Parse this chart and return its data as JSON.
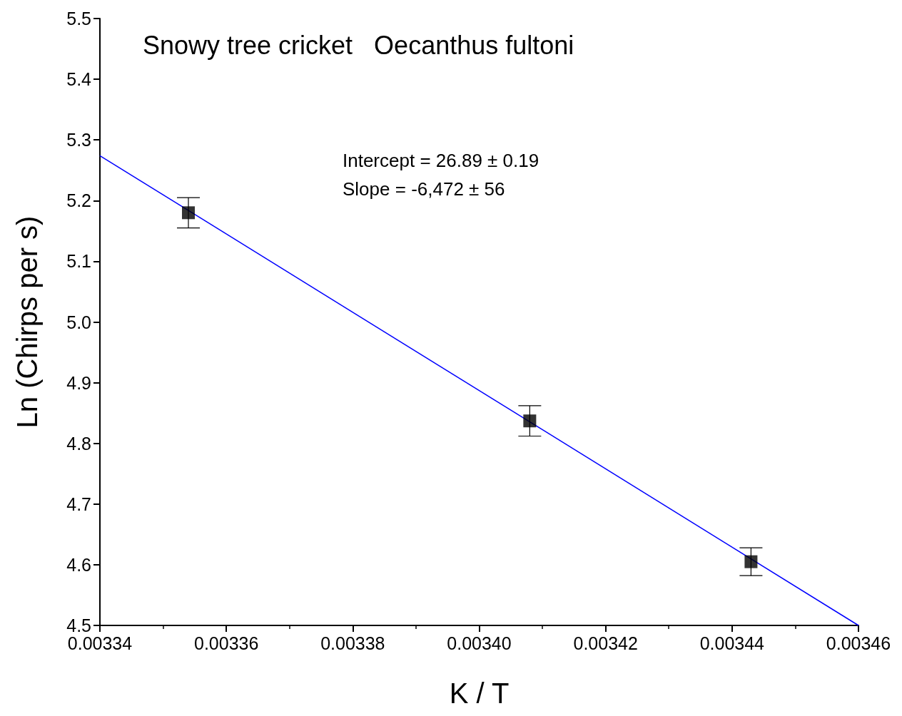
{
  "chart_data": {
    "type": "scatter",
    "title": "Snowy tree cricket   Oecanthus fultoni",
    "xlabel": "K / T",
    "ylabel": "Ln (Chirps per s)",
    "annotations": [
      "Intercept = 26.89 ± 0.19",
      "Slope = -6,472 ± 56"
    ],
    "series": [
      {
        "color": "#000000",
        "x": [
          0.003354,
          0.003408,
          0.003443
        ],
        "values": [
          5.18,
          4.837,
          4.605
        ],
        "errors": [
          0.025,
          0.025,
          0.023
        ]
      },
      {
        "type": "line",
        "color": "#0000ff",
        "marker": "none",
        "x": [
          0.00334,
          0.00346
        ],
        "values": [
          5.274,
          4.5
        ]
      }
    ],
    "marker": "square",
    "grid": false,
    "xlim": [
      0.00334,
      0.00346
    ],
    "xticks": [
      0.00334,
      0.00336,
      0.00338,
      {
        "value": 0.0034,
        "label": "0.00340"
      },
      0.00342,
      0.00344,
      0.00346
    ],
    "ylim": [
      4.5,
      5.5
    ],
    "yticks": [
      4.5,
      4.6,
      4.7,
      4.8,
      4.9,
      {
        "value": 5,
        "label": "5.0"
      },
      5.1,
      5.2,
      5.3,
      5.4,
      5.5
    ]
  }
}
